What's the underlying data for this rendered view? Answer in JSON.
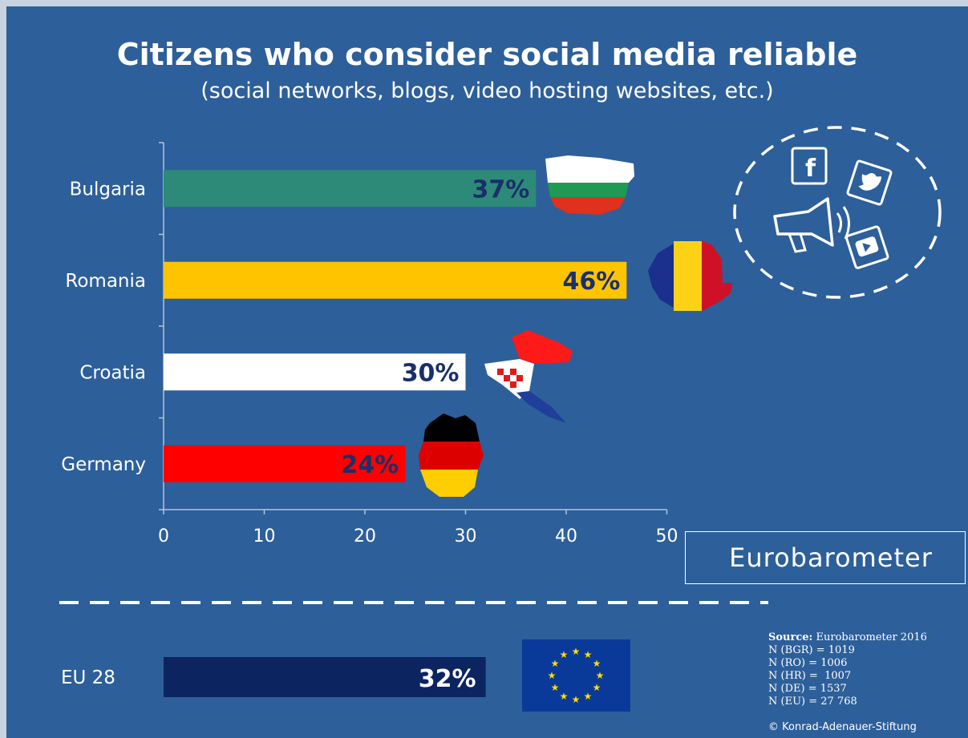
{
  "title": "Citizens who consider social media reliable",
  "subtitle": "(social networks, blogs, video hosting websites, etc.)",
  "badge": "Eurobarometer",
  "source": {
    "label": "Source:",
    "text": "Eurobarometer 2016",
    "lines": [
      "N (BGR) = 1019",
      "N (RO) = 1006",
      "N (HR) =  1007",
      "N (DE) = 1537",
      "N (EU) = 27 768"
    ]
  },
  "copyright": "© Konrad-Adenauer-Stiftung",
  "icons": [
    "facebook-icon",
    "twitter-icon",
    "megaphone-icon",
    "youtube-icon",
    "eu-flag-icon"
  ],
  "colors": {
    "background": "#2d5f9a",
    "label_text": "#1a2f6b"
  },
  "chart_data": [
    {
      "type": "bar",
      "orientation": "horizontal",
      "categories": [
        "Bulgaria",
        "Romania",
        "Croatia",
        "Germany"
      ],
      "values": [
        37,
        46,
        30,
        24
      ],
      "value_labels": [
        "37%",
        "46%",
        "30%",
        "24%"
      ],
      "colors": [
        "#2e8a78",
        "#ffc400",
        "#ffffff",
        "#ff0000"
      ],
      "xlim": [
        0,
        50
      ],
      "xticks": [
        "0",
        "10",
        "20",
        "30",
        "40",
        "50"
      ],
      "grid": false
    },
    {
      "type": "bar",
      "orientation": "horizontal",
      "categories": [
        "EU 28"
      ],
      "values": [
        32
      ],
      "value_labels": [
        "32%"
      ],
      "colors": [
        "#0c2460"
      ],
      "xlim": [
        0,
        50
      ]
    }
  ]
}
